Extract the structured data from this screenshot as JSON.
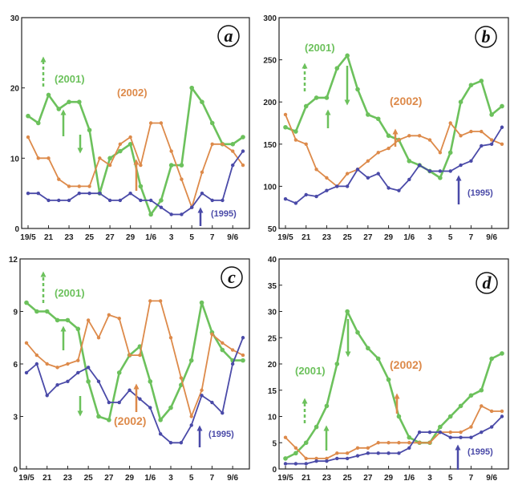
{
  "colors": {
    "s2001": "#6cc15c",
    "s2002": "#dd8a4a",
    "s1995": "#4a4aa8"
  },
  "chart_data": [
    {
      "type": "line",
      "panel_label": "a",
      "x_tick_labels": [
        "19/5",
        "21",
        "23",
        "25",
        "27",
        "29",
        "1/6",
        "3",
        "5",
        "7",
        "9/6"
      ],
      "x_count": 22,
      "ylim": [
        0,
        30
      ],
      "y_ticks": [
        "0",
        "10",
        "20",
        "30"
      ],
      "series": [
        {
          "name": "(2001)",
          "color": "#6cc15c",
          "values": [
            16,
            15,
            19,
            17,
            18,
            18,
            14,
            5,
            10,
            11,
            12,
            6,
            2,
            4,
            9,
            9,
            20,
            18,
            15,
            12,
            12,
            13
          ]
        },
        {
          "name": "(2002)",
          "color": "#dd8a4a",
          "values": [
            13,
            10,
            10,
            7,
            6,
            6,
            6,
            10,
            9,
            12,
            13,
            9,
            15,
            15,
            11,
            7,
            3,
            8,
            12,
            12,
            11,
            9
          ]
        },
        {
          "name": "(1995)",
          "color": "#4a4aa8",
          "values": [
            5,
            5,
            4,
            4,
            4,
            5,
            5,
            5,
            4,
            4,
            5,
            4,
            4,
            3,
            2,
            2,
            3,
            5,
            4,
            4,
            9,
            11
          ]
        }
      ]
    },
    {
      "type": "line",
      "panel_label": "b",
      "x_tick_labels": [
        "19/5",
        "21",
        "23",
        "25",
        "27",
        "29",
        "1/6",
        "3",
        "5",
        "7",
        "9/6"
      ],
      "x_count": 22,
      "ylim": [
        50,
        300
      ],
      "y_ticks": [
        "50",
        "100",
        "150",
        "200",
        "250",
        "300"
      ],
      "series": [
        {
          "name": "(2001)",
          "color": "#6cc15c",
          "values": [
            170,
            165,
            195,
            205,
            205,
            240,
            255,
            215,
            185,
            180,
            160,
            155,
            130,
            125,
            118,
            110,
            140,
            200,
            220,
            225,
            185,
            195
          ]
        },
        {
          "name": "(2002)",
          "color": "#dd8a4a",
          "values": [
            185,
            155,
            150,
            120,
            110,
            100,
            115,
            120,
            130,
            140,
            145,
            155,
            160,
            160,
            155,
            140,
            175,
            160,
            165,
            165,
            155,
            150
          ]
        },
        {
          "name": "(1995)",
          "color": "#4a4aa8",
          "values": [
            85,
            80,
            90,
            88,
            95,
            100,
            100,
            120,
            110,
            115,
            98,
            95,
            108,
            125,
            118,
            118,
            118,
            125,
            130,
            148,
            150,
            170
          ]
        }
      ]
    },
    {
      "type": "line",
      "panel_label": "c",
      "x_tick_labels": [
        "19/5",
        "21",
        "23",
        "25",
        "27",
        "29",
        "1/6",
        "3",
        "5",
        "7",
        "9/6"
      ],
      "x_count": 22,
      "ylim": [
        0,
        12
      ],
      "y_ticks": [
        "0",
        "3",
        "6",
        "9",
        "12"
      ],
      "series": [
        {
          "name": "(2001)",
          "color": "#6cc15c",
          "values": [
            9.5,
            9,
            9,
            8.5,
            8.5,
            8,
            5,
            3,
            2.8,
            5.5,
            6.5,
            7,
            5,
            2.8,
            3.5,
            4.8,
            6.2,
            9.5,
            7.8,
            6.8,
            6.2,
            6.2
          ]
        },
        {
          "name": "(2002)",
          "color": "#dd8a4a",
          "values": [
            7.2,
            6.5,
            6,
            5.8,
            6,
            6.2,
            8.5,
            7.5,
            8.8,
            8.6,
            6.5,
            6.5,
            9.6,
            9.6,
            7.5,
            5.2,
            3,
            4.5,
            7.7,
            7.2,
            6.8,
            6.5
          ]
        },
        {
          "name": "(1995)",
          "color": "#4a4aa8",
          "values": [
            5.5,
            6,
            4.2,
            4.8,
            5,
            5.5,
            5.8,
            5,
            3.8,
            3.8,
            4.5,
            4,
            3.5,
            2,
            1.5,
            1.5,
            2.5,
            4.2,
            3.8,
            3.2,
            6,
            7.5
          ]
        }
      ]
    },
    {
      "type": "line",
      "panel_label": "d",
      "x_tick_labels": [
        "19/5",
        "21",
        "23",
        "25",
        "27",
        "29",
        "1/6",
        "3",
        "5",
        "7",
        "9/6"
      ],
      "x_count": 22,
      "ylim": [
        0,
        40
      ],
      "y_ticks": [
        "0",
        "5",
        "10",
        "15",
        "20",
        "25",
        "30",
        "35",
        "40"
      ],
      "series": [
        {
          "name": "(2001)",
          "color": "#6cc15c",
          "values": [
            2,
            3,
            5,
            8,
            12,
            20,
            30,
            26,
            23,
            21,
            17,
            10,
            6,
            5,
            5,
            8,
            10,
            12,
            14,
            15,
            21,
            22
          ]
        },
        {
          "name": "(2002)",
          "color": "#dd8a4a",
          "values": [
            6,
            4,
            2,
            2,
            2,
            3,
            3,
            4,
            4,
            5,
            5,
            5,
            5,
            5,
            5,
            7,
            7,
            7,
            8,
            12,
            11,
            11
          ]
        },
        {
          "name": "(1995)",
          "color": "#4a4aa8",
          "values": [
            1,
            1,
            1,
            1.5,
            1.5,
            2,
            2,
            2.5,
            3,
            3,
            3,
            3,
            4,
            7,
            7,
            7,
            6,
            6,
            6,
            7,
            8,
            10
          ]
        }
      ]
    }
  ]
}
